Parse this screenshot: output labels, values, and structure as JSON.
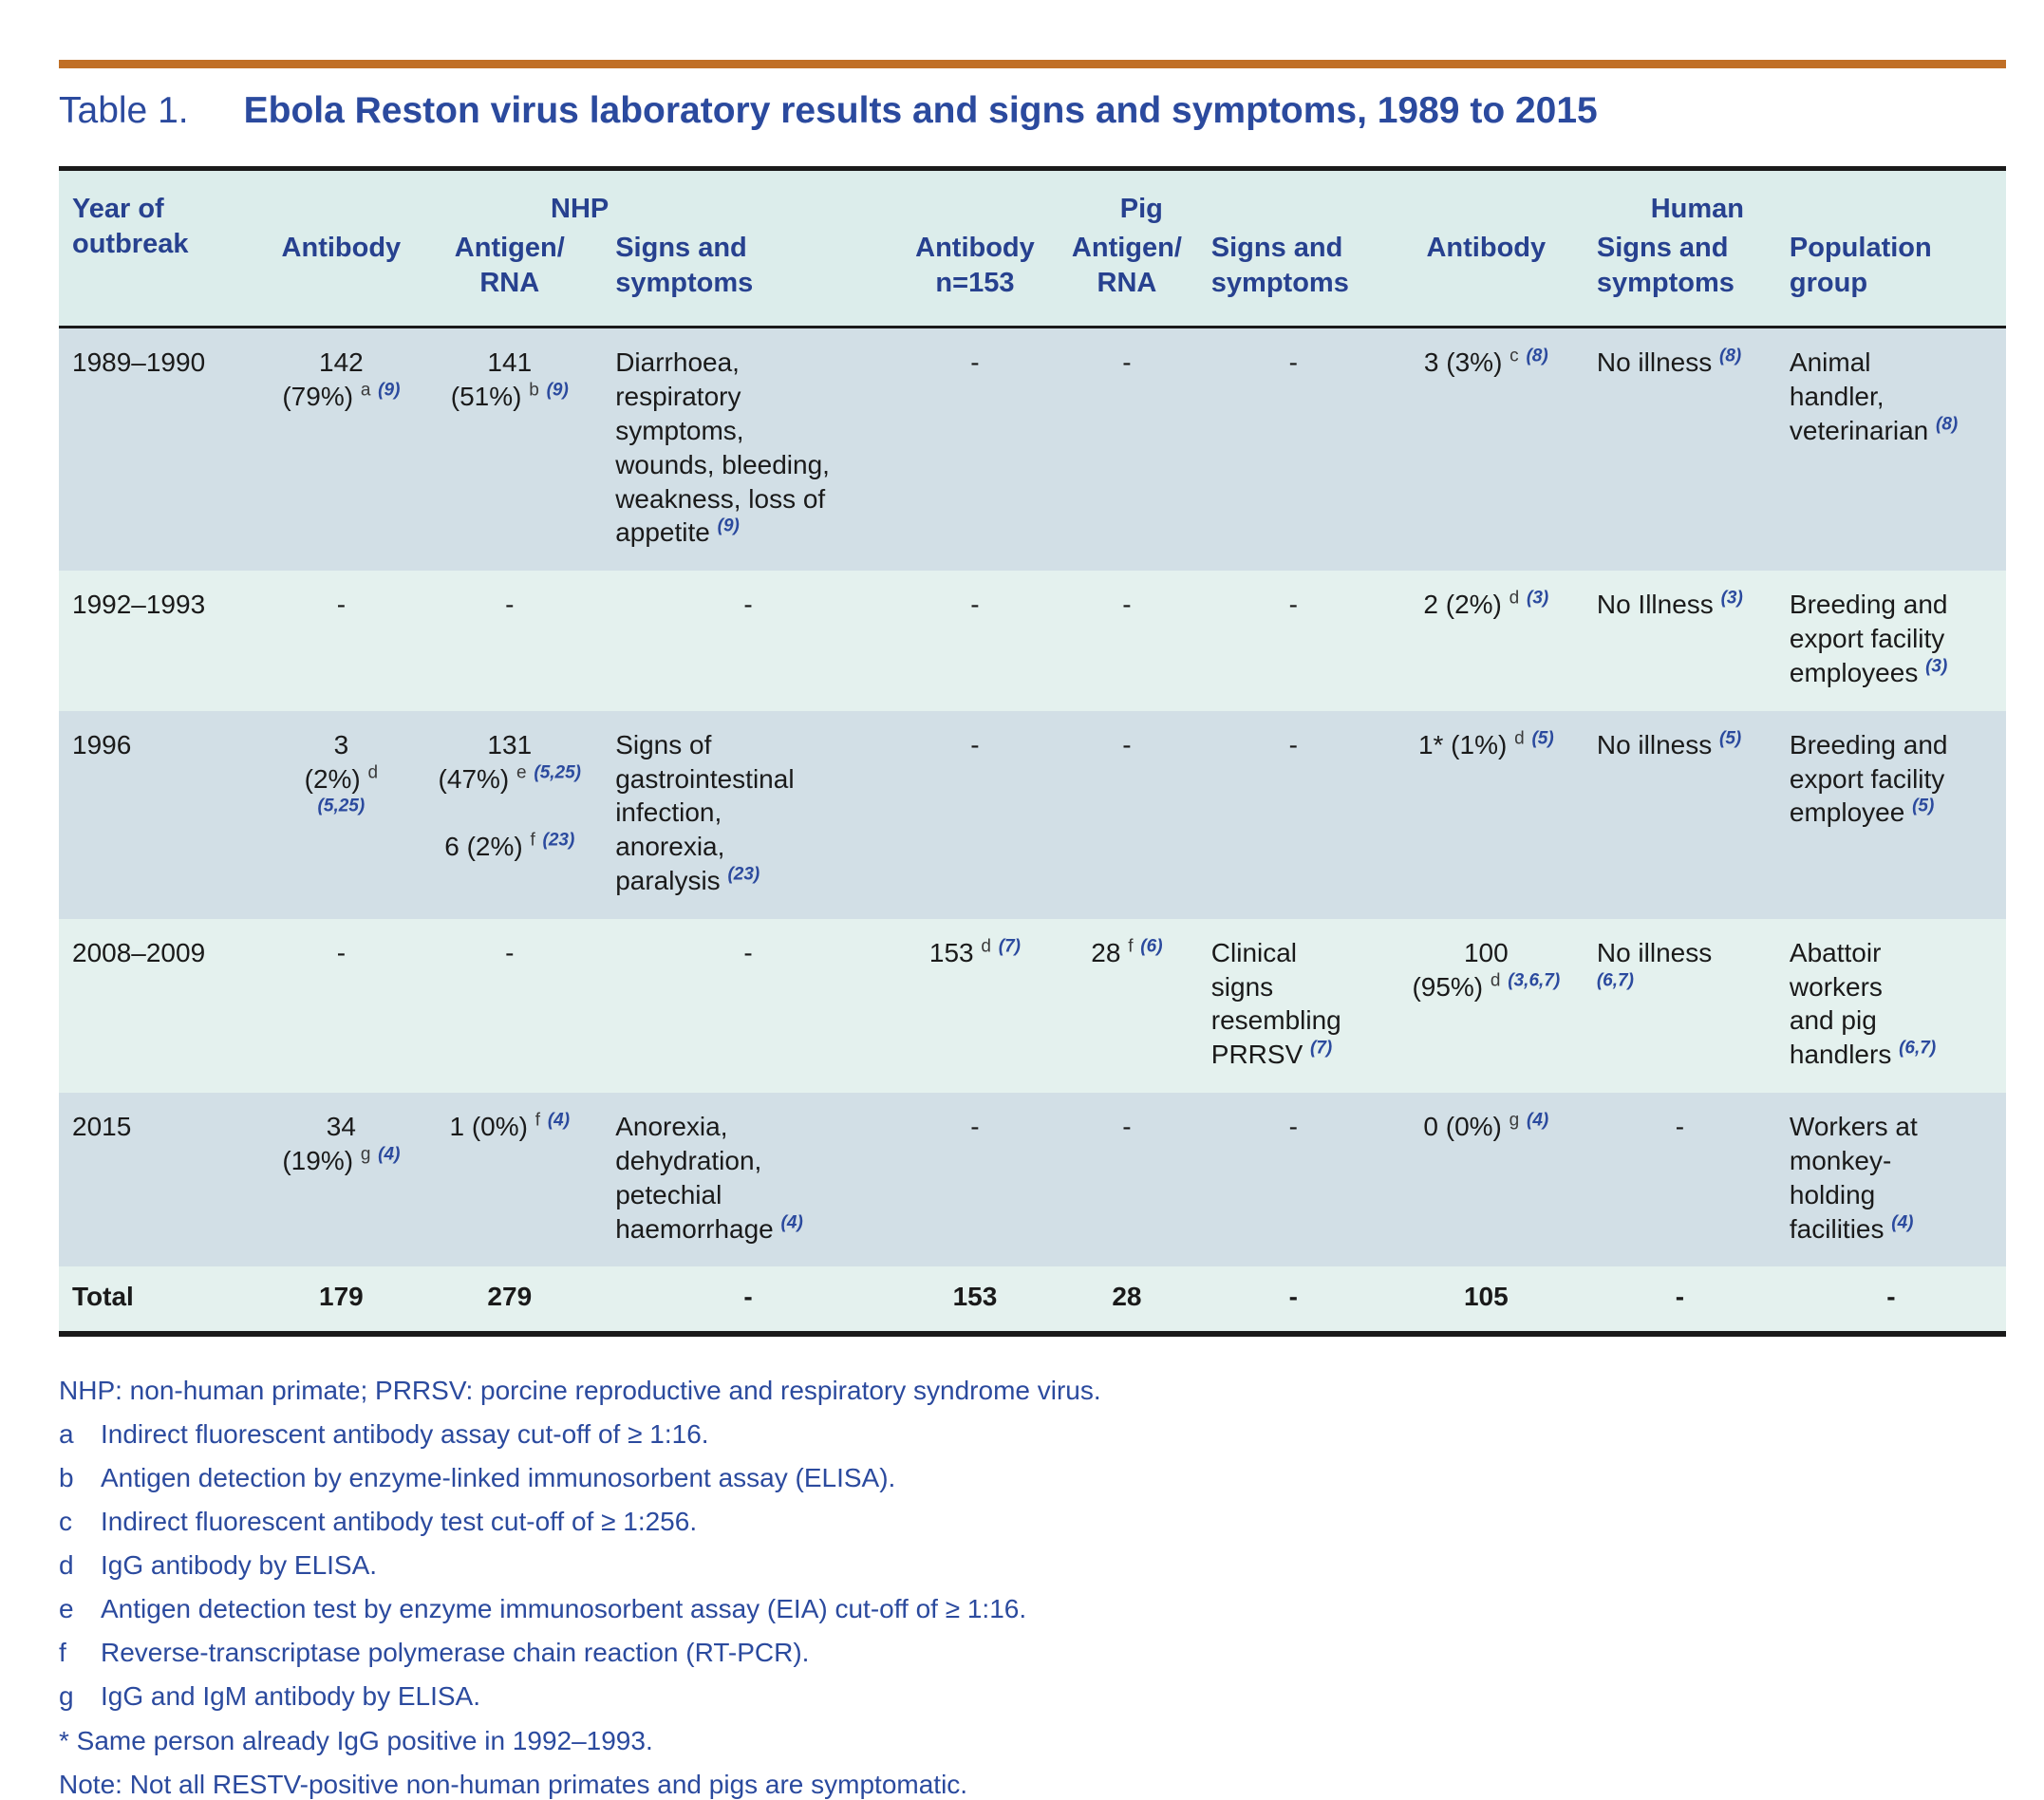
{
  "page": {
    "title_label": "Table 1.",
    "title": "Ebola Reston virus laboratory results and signs and symptoms, 1989 to 2015"
  },
  "colors": {
    "accent_rule": "#c06f26",
    "blue_text": "#2b4a9e",
    "header_navy": "#27418f",
    "row_alt_a": "#d2dfe6",
    "row_alt_b": "#e4f1ee",
    "header_bg": "#dcedeb"
  },
  "table": {
    "corner_header": "Year of\noutbreak",
    "groups": [
      {
        "label": "NHP",
        "span": 3
      },
      {
        "label": "Pig",
        "span": 3
      },
      {
        "label": "Human",
        "span": 3
      }
    ],
    "columns": [
      "Antibody",
      "Antigen/\nRNA",
      "Signs and\nsymptoms",
      "Antibody\nn=153",
      "Antigen/\nRNA",
      "Signs and\nsymptoms",
      "Antibody",
      "Signs and\nsymptoms",
      "Population\ngroup"
    ],
    "rows": [
      [
        "1989–1990",
        "142\n(79%) ^a^ ~(9)~",
        "141\n(51%) ^b^ ~(9)~",
        "Diarrhoea,\nrespiratory\nsymptoms,\nwounds, bleeding,\nweakness, loss of\nappetite ~(9)~",
        "-",
        "-",
        "-",
        "3 (3%) ^c^ ~(8)~",
        "No illness ~(8)~",
        "Animal\nhandler,\nveterinarian ~(8)~"
      ],
      [
        "1992–1993",
        "-",
        "-",
        "-",
        "-",
        "-",
        "-",
        "2 (2%) ^d^ ~(3)~",
        "No Illness ~(3)~",
        "Breeding and\nexport facility\nemployees ~(3)~"
      ],
      [
        "1996",
        "3\n(2%) ^d^ ~(5,25)~",
        "131\n(47%) ^e^ ~(5,25)~\n\n6 (2%) ^f^ ~(23)~",
        "Signs of\ngastrointestinal\ninfection,\nanorexia,\nparalysis ~(23)~",
        "-",
        "-",
        "-",
        "1* (1%) ^d^ ~(5)~",
        "No illness ~(5)~",
        "Breeding and\nexport facility\nemployee ~(5)~"
      ],
      [
        "2008–2009",
        "-",
        "-",
        "-",
        "153 ^d^ ~(7)~",
        "28 ^f^ ~(6)~",
        "Clinical\nsigns\nresembling\nPRRSV ~(7)~",
        "100\n(95%) ^d^ ~(3,6,7)~",
        "No illness\n~(6,7)~",
        "Abattoir\nworkers\nand pig\nhandlers ~(6,7)~"
      ],
      [
        "2015",
        "34\n(19%) ^g^ ~(4)~",
        "1 (0%) ^f^ ~(4)~",
        "Anorexia,\ndehydration,\npetechial\nhaemorrhage ~(4)~",
        "-",
        "-",
        "-",
        "0 (0%) ^g^ ~(4)~",
        "-",
        "Workers at\nmonkey-\nholding\nfacilities ~(4)~"
      ]
    ],
    "total_row": [
      "Total",
      "179",
      "279",
      "-",
      "153",
      "28",
      "-",
      "105",
      "-",
      "-"
    ]
  },
  "footnotes": {
    "abbrev": "NHP: non-human primate; PRRSV: porcine reproductive and respiratory syndrome virus.",
    "items": [
      {
        "label": "a",
        "text": "Indirect fluorescent antibody assay cut-off of ≥ 1:16."
      },
      {
        "label": "b",
        "text": "Antigen detection by enzyme-linked immunosorbent assay (ELISA)."
      },
      {
        "label": "c",
        "text": "Indirect fluorescent antibody test cut-off of ≥ 1:256."
      },
      {
        "label": "d",
        "text": "IgG antibody by ELISA."
      },
      {
        "label": "e",
        "text": "Antigen detection test by enzyme immunosorbent assay (EIA) cut-off of ≥ 1:16."
      },
      {
        "label": "f",
        "text": "Reverse-transcriptase polymerase chain reaction (RT-PCR)."
      },
      {
        "label": "g",
        "text": "IgG and IgM antibody by ELISA."
      }
    ],
    "asterisk": "* Same person already IgG positive in 1992–1993.",
    "note": "Note: Not all RESTV-positive non-human primates and pigs are symptomatic."
  }
}
